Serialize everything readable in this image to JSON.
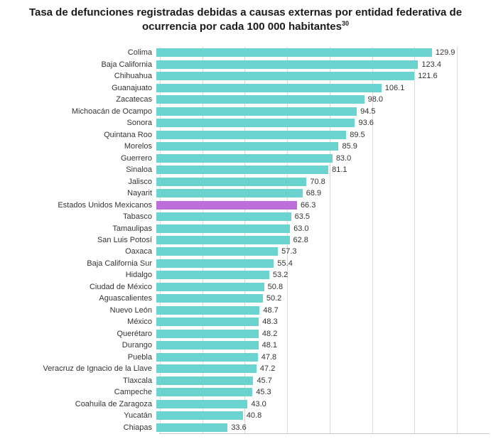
{
  "title": {
    "text": "Tasa de defunciones registradas debidas a causas externas por entidad federativa de ocurrencia por cada 100 000 habitantes",
    "superscript": "30"
  },
  "chart_data": {
    "type": "bar",
    "orientation": "horizontal",
    "title": "Tasa de defunciones registradas debidas a causas externas por entidad federativa de ocurrencia por cada 100 000 habitantes",
    "xlabel": "",
    "ylabel": "",
    "xlim": [
      0,
      140
    ],
    "gridline_step": 20,
    "grid": true,
    "legend": false,
    "value_labels": true,
    "value_label_decimals": 1,
    "bar_color": "#6BD4D0",
    "highlight_color": "#BC6FDA",
    "gridline_color": "#d9d9d9",
    "highlight_category": "Estados Unidos Mexicanos",
    "categories": [
      "Colima",
      "Baja California",
      "Chihuahua",
      "Guanajuato",
      "Zacatecas",
      "Michoacán de Ocampo",
      "Sonora",
      "Quintana Roo",
      "Morelos",
      "Guerrero",
      "Sinaloa",
      "Jalisco",
      "Nayarit",
      "Estados Unidos Mexicanos",
      "Tabasco",
      "Tamaulipas",
      "San Luis Potosí",
      "Oaxaca",
      "Baja California Sur",
      "Hidalgo",
      "Ciudad de México",
      "Aguascalientes",
      "Nuevo León",
      "México",
      "Querétaro",
      "Durango",
      "Puebla",
      "Veracruz de Ignacio de la Llave",
      "Tlaxcala",
      "Campeche",
      "Coahuila de Zaragoza",
      "Yucatán",
      "Chiapas"
    ],
    "values": [
      129.9,
      123.4,
      121.6,
      106.1,
      98.0,
      94.5,
      93.6,
      89.5,
      85.9,
      83.0,
      81.1,
      70.8,
      68.9,
      66.3,
      63.5,
      63.0,
      62.8,
      57.3,
      55.4,
      53.2,
      50.8,
      50.2,
      48.7,
      48.3,
      48.2,
      48.1,
      47.8,
      47.2,
      45.7,
      45.3,
      43.0,
      40.8,
      33.6
    ]
  }
}
